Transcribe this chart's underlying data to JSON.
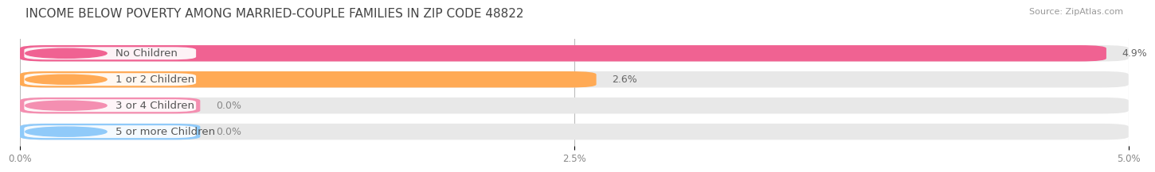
{
  "title": "INCOME BELOW POVERTY AMONG MARRIED-COUPLE FAMILIES IN ZIP CODE 48822",
  "source": "Source: ZipAtlas.com",
  "categories": [
    "No Children",
    "1 or 2 Children",
    "3 or 4 Children",
    "5 or more Children"
  ],
  "values": [
    4.9,
    2.6,
    0.0,
    0.0
  ],
  "bar_colors": [
    "#F06292",
    "#FFAA55",
    "#F48FB1",
    "#90CAF9"
  ],
  "bg_color": "#EEEEEE",
  "label_dot_colors": [
    "#F06292",
    "#FFAA55",
    "#F48FB1",
    "#90CAF9"
  ],
  "value_labels": [
    "4.9%",
    "2.6%",
    "0.0%",
    "0.0%"
  ],
  "xmax": 5.0,
  "xticks": [
    0.0,
    2.5,
    5.0
  ],
  "xtick_labels": [
    "0.0%",
    "2.5%",
    "5.0%"
  ],
  "background_color": "#ffffff",
  "bar_height": 0.62,
  "title_fontsize": 11,
  "label_fontsize": 9.5,
  "value_fontsize": 9
}
